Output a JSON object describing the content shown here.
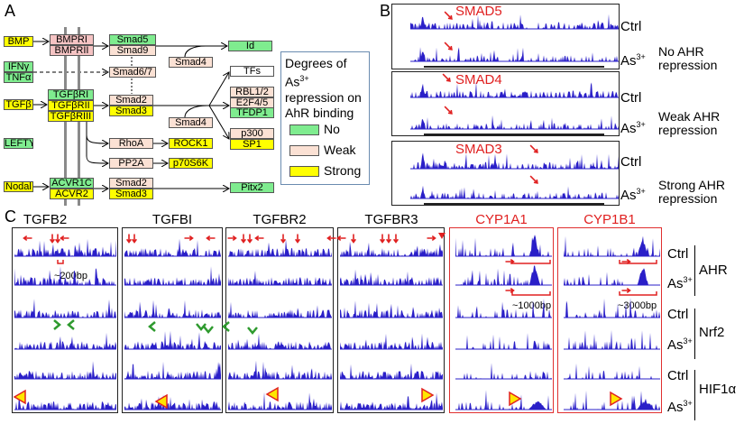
{
  "panels": {
    "a": "A",
    "b": "B",
    "c": "C"
  },
  "pathway": {
    "ligands": [
      "BMP",
      "IFNγ",
      "TNFα",
      "TGFβ",
      "LEFTY",
      "Nodal"
    ],
    "receptors": [
      "BMPRI",
      "BMPRII",
      "TGFβRI",
      "TGFβRII",
      "TGFβRIII",
      "ACVR1C",
      "ACVR2"
    ],
    "smads": [
      "Smad5",
      "Smad9",
      "Smad6/7",
      "Smad2",
      "Smad3",
      "Smad2",
      "Smad3",
      "Smad4",
      "Smad4"
    ],
    "effectors": [
      "RhoA",
      "ROCK1",
      "PP2A",
      "p70S6K"
    ],
    "targets": [
      "Id",
      "TFs",
      "RBL1/2",
      "E2F4/5",
      "TFDP1",
      "p300",
      "SP1",
      "Pitx2"
    ],
    "legend": {
      "title_pre": "Degrees of As",
      "title_sup": "3+",
      "title_post": "repression on AhR binding",
      "items": [
        {
          "label": "No",
          "color": "#7fec8f"
        },
        {
          "label": "Weak",
          "color": "#fbe1d4"
        },
        {
          "label": "Strong",
          "color": "#ffff00"
        }
      ]
    }
  },
  "panel_b": {
    "genes": [
      "SMAD5",
      "SMAD4",
      "SMAD3"
    ],
    "ctrl": "Ctrl",
    "as": "As",
    "as_sup": "3+",
    "descriptions": [
      "No AHR repression",
      "Weak AHR repression",
      "Strong AHR repression"
    ]
  },
  "panel_c": {
    "genes": [
      {
        "name": "TGFB2",
        "color": "#000000"
      },
      {
        "name": "TGFBI",
        "color": "#000000"
      },
      {
        "name": "TGFBR2",
        "color": "#000000"
      },
      {
        "name": "TGFBR3",
        "color": "#000000"
      },
      {
        "name": "CYP1A1",
        "color": "#e02020"
      },
      {
        "name": "CYP1B1",
        "color": "#e02020"
      }
    ],
    "factors": [
      "AHR",
      "Nrf2",
      "HIF1α"
    ],
    "ctrl": "Ctrl",
    "as": "As",
    "as_sup": "3+",
    "scale_labels": [
      "~200bp",
      "~1000bp",
      "~3000bp"
    ]
  },
  "colors": {
    "signal": "#2a1fc8",
    "arrow_red": "#e02020",
    "arrow_green": "#2e9a2e",
    "triangle_fill": "#ffe600",
    "triangle_edge": "#e02020"
  }
}
